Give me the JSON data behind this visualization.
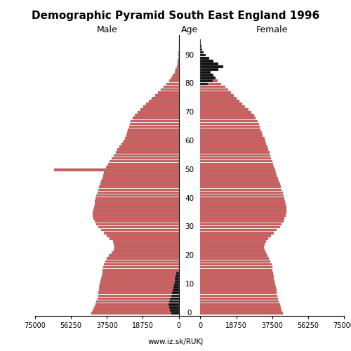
{
  "title": "Demographic Pyramid South East England 1996",
  "male_label": "Male",
  "female_label": "Female",
  "age_label": "Age",
  "source": "www.iz.sk/RUKJ",
  "xlim": 75000,
  "bar_color_main": "#CD5C5C",
  "bar_color_black": "#111111",
  "ages": [
    0,
    1,
    2,
    3,
    4,
    5,
    6,
    7,
    8,
    9,
    10,
    11,
    12,
    13,
    14,
    15,
    16,
    17,
    18,
    19,
    20,
    21,
    22,
    23,
    24,
    25,
    26,
    27,
    28,
    29,
    30,
    31,
    32,
    33,
    34,
    35,
    36,
    37,
    38,
    39,
    40,
    41,
    42,
    43,
    44,
    45,
    46,
    47,
    48,
    49,
    50,
    51,
    52,
    53,
    54,
    55,
    56,
    57,
    58,
    59,
    60,
    61,
    62,
    63,
    64,
    65,
    66,
    67,
    68,
    69,
    70,
    71,
    72,
    73,
    74,
    75,
    76,
    77,
    78,
    79,
    80,
    81,
    82,
    83,
    84,
    85,
    86,
    87,
    88,
    89,
    90,
    91,
    92,
    93,
    94,
    95
  ],
  "male": [
    45500,
    44800,
    44200,
    43500,
    43000,
    42500,
    42200,
    42000,
    41800,
    41500,
    41200,
    40800,
    40500,
    40200,
    40000,
    39800,
    39500,
    39200,
    38500,
    37800,
    36500,
    35200,
    34000,
    33500,
    33800,
    34500,
    36000,
    37500,
    39000,
    40500,
    42000,
    43000,
    44000,
    44500,
    45000,
    44800,
    44500,
    44200,
    44000,
    43800,
    43500,
    43000,
    42500,
    42000,
    41500,
    41000,
    40500,
    40000,
    39500,
    39000,
    65000,
    38000,
    37000,
    36000,
    35000,
    34000,
    33000,
    32000,
    31000,
    30000,
    29000,
    28000,
    27500,
    27000,
    26500,
    26000,
    25500,
    25000,
    24000,
    23000,
    21500,
    20000,
    18500,
    17000,
    15500,
    14000,
    12500,
    11000,
    9500,
    8000,
    6500,
    5000,
    4000,
    3000,
    2200,
    1600,
    1100,
    700,
    450,
    280,
    160,
    90,
    50,
    25,
    12,
    5
  ],
  "female": [
    43000,
    42500,
    42000,
    41500,
    41000,
    40500,
    40200,
    40000,
    39800,
    39500,
    39200,
    38800,
    38500,
    38200,
    38000,
    37800,
    37500,
    37200,
    36500,
    35800,
    35000,
    34200,
    33500,
    33200,
    33500,
    34200,
    35500,
    37000,
    38500,
    40000,
    41500,
    42500,
    43500,
    44000,
    44500,
    44800,
    45000,
    44800,
    44500,
    44200,
    44000,
    43500,
    43000,
    42500,
    42000,
    41500,
    41000,
    40500,
    40000,
    39500,
    39000,
    38500,
    38000,
    37500,
    37000,
    36500,
    36000,
    35500,
    35000,
    34500,
    34000,
    33500,
    32500,
    32000,
    31500,
    31000,
    30500,
    30000,
    29000,
    28000,
    26500,
    25000,
    23500,
    22000,
    20500,
    19000,
    17500,
    16000,
    14500,
    13000,
    11000,
    9000,
    7500,
    6000,
    4800,
    3500,
    3000,
    2500,
    2000,
    1500,
    1000,
    600,
    350,
    180,
    80,
    30
  ],
  "female_black": [
    0,
    0,
    0,
    0,
    0,
    0,
    0,
    0,
    0,
    0,
    0,
    0,
    0,
    0,
    0,
    0,
    0,
    0,
    0,
    0,
    0,
    0,
    0,
    0,
    0,
    0,
    0,
    0,
    0,
    0,
    0,
    0,
    0,
    0,
    0,
    0,
    0,
    0,
    0,
    0,
    0,
    0,
    0,
    0,
    0,
    0,
    0,
    0,
    0,
    0,
    0,
    0,
    0,
    0,
    0,
    0,
    0,
    0,
    0,
    0,
    0,
    0,
    0,
    0,
    0,
    0,
    0,
    0,
    0,
    0,
    0,
    0,
    0,
    0,
    0,
    0,
    0,
    0,
    0,
    0,
    4000,
    6500,
    8000,
    7000,
    5500,
    9500,
    12000,
    9500,
    7000,
    4500,
    2800,
    1600,
    900,
    500,
    200,
    80
  ],
  "male_black": [
    4000,
    4500,
    5000,
    5200,
    5000,
    4500,
    4000,
    3500,
    3200,
    2800,
    2500,
    2200,
    1900,
    1600,
    1400,
    0,
    0,
    0,
    0,
    0,
    0,
    0,
    0,
    0,
    0,
    0,
    0,
    0,
    0,
    0,
    0,
    0,
    0,
    0,
    0,
    0,
    0,
    0,
    0,
    0,
    0,
    0,
    0,
    0,
    0,
    0,
    0,
    0,
    0,
    0,
    0,
    0,
    0,
    0,
    0,
    0,
    0,
    0,
    0,
    0,
    0,
    0,
    0,
    0,
    0,
    0,
    0,
    0,
    0,
    0,
    0,
    0,
    0,
    0,
    0,
    0,
    0,
    0,
    0,
    0,
    0,
    0,
    0,
    0,
    0,
    0,
    0,
    0,
    0,
    0,
    0,
    0,
    0,
    0,
    0,
    0
  ]
}
